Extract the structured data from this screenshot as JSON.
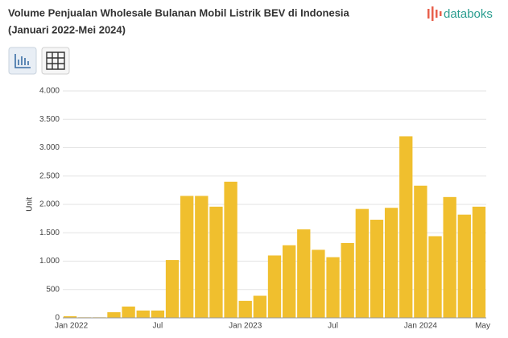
{
  "brand": "databoks",
  "chart_data": {
    "type": "bar",
    "title": "Volume Penjualan Wholesale Bulanan Mobil Listrik BEV di Indonesia",
    "subtitle": "(Januari 2022-Mei 2024)",
    "y_label": "Unit",
    "categories": [
      "Jan 2022",
      null,
      null,
      null,
      null,
      null,
      "Jul",
      null,
      null,
      null,
      null,
      null,
      "Jan 2023",
      null,
      null,
      null,
      null,
      null,
      "Jul",
      null,
      null,
      null,
      null,
      null,
      "Jan 2024",
      null,
      null,
      null,
      "May"
    ],
    "values": [
      30,
      10,
      10,
      100,
      200,
      130,
      130,
      1020,
      2150,
      2150,
      1960,
      2400,
      300,
      390,
      1100,
      1280,
      1560,
      1200,
      1070,
      1320,
      1920,
      1730,
      1940,
      3200,
      2330,
      1440,
      2130,
      1820,
      1960
    ],
    "color": "#f0bf2e",
    "ylim": [
      0,
      4000
    ],
    "yticks": [
      0,
      {
        "value": 500,
        "label": "500"
      },
      {
        "value": 1000,
        "label": "1.000"
      },
      {
        "value": 1500,
        "label": "1.500"
      },
      {
        "value": 2000,
        "label": "2.000"
      },
      {
        "value": 2500,
        "label": "2.500"
      },
      {
        "value": 3000,
        "label": "3.000"
      },
      {
        "value": 3500,
        "label": "3.500"
      },
      {
        "value": 4000,
        "label": "4.000"
      }
    ],
    "grid": true
  }
}
